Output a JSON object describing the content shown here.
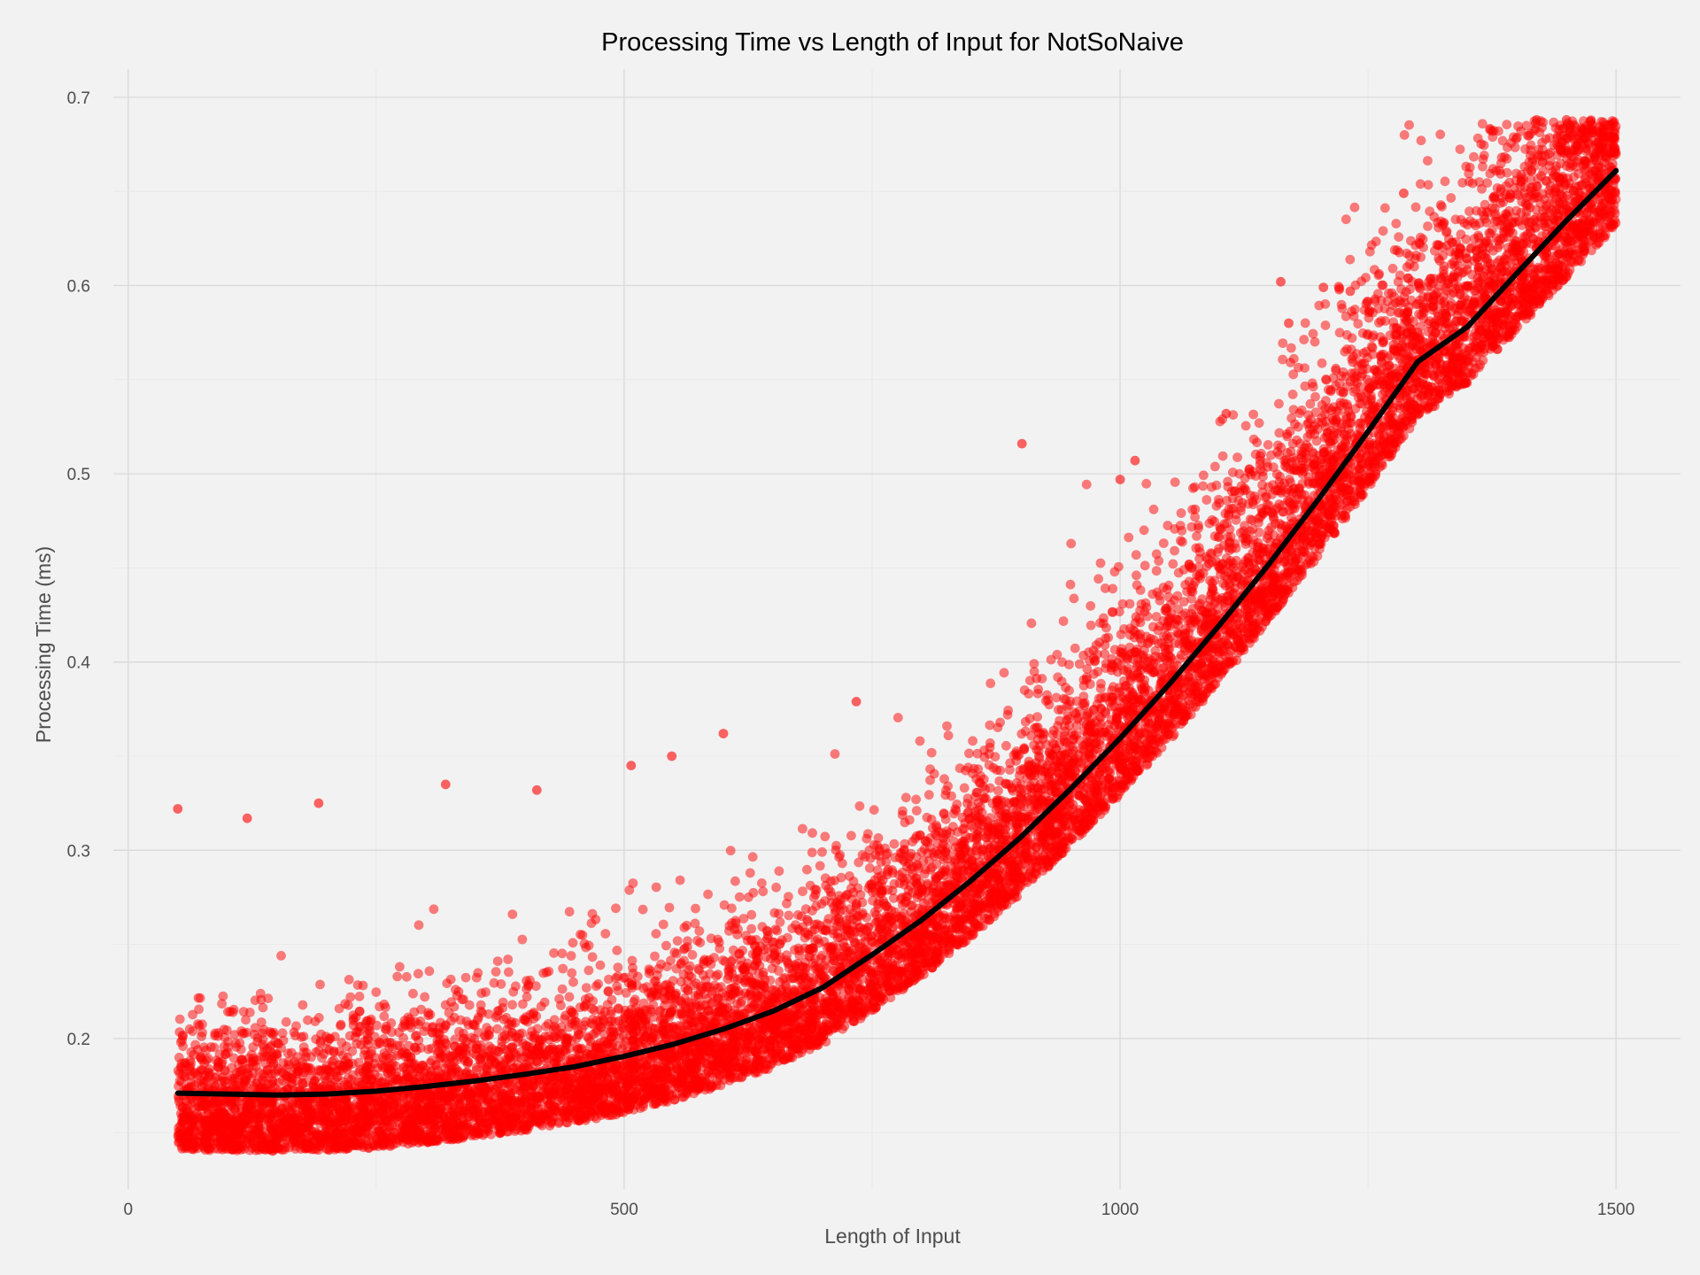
{
  "chart_data": {
    "type": "scatter",
    "title": "Processing Time vs Length of Input for NotSoNaive",
    "xlabel": "Length of Input",
    "ylabel": "Processing Time (ms)",
    "xlim": [
      -15,
      1565
    ],
    "ylim": [
      0.12,
      0.715
    ],
    "x_ticks": [
      0,
      500,
      1000,
      1500
    ],
    "y_ticks": [
      0.2,
      0.3,
      0.4,
      0.5,
      0.6,
      0.7
    ],
    "x_tick_labels": [
      "0",
      "500",
      "1000",
      "1500"
    ],
    "y_tick_labels": [
      "0.2",
      "0.3",
      "0.4",
      "0.5",
      "0.6",
      "0.7"
    ],
    "grid": true,
    "legend": "none",
    "colors": {
      "points": "#ff0000",
      "trend": "#000000",
      "background": "#f2f2f2",
      "grid": "#d9d9d9"
    },
    "series": [
      {
        "type": "scatter",
        "x_range": [
          50,
          1500
        ],
        "y_floor": 0.135,
        "y_ceiling": 0.688,
        "approx_count": 15000,
        "outliers": [
          {
            "x": 50,
            "y": 0.322
          },
          {
            "x": 120,
            "y": 0.317
          },
          {
            "x": 192,
            "y": 0.325
          },
          {
            "x": 320,
            "y": 0.335
          },
          {
            "x": 412,
            "y": 0.332
          },
          {
            "x": 507,
            "y": 0.345
          },
          {
            "x": 548,
            "y": 0.35
          },
          {
            "x": 600,
            "y": 0.362
          },
          {
            "x": 734,
            "y": 0.379
          },
          {
            "x": 901,
            "y": 0.516
          },
          {
            "x": 1000,
            "y": 0.497
          },
          {
            "x": 1015,
            "y": 0.507
          },
          {
            "x": 1107,
            "y": 0.532
          },
          {
            "x": 1162,
            "y": 0.602
          },
          {
            "x": 1205,
            "y": 0.599
          },
          {
            "x": 1232,
            "y": 0.597
          },
          {
            "x": 1286,
            "y": 0.649
          },
          {
            "x": 1170,
            "y": 0.58
          },
          {
            "x": 1420,
            "y": 0.688
          },
          {
            "x": 1450,
            "y": 0.688
          }
        ]
      },
      {
        "type": "line",
        "x": [
          50,
          100,
          150,
          200,
          250,
          300,
          350,
          400,
          450,
          500,
          550,
          600,
          650,
          700,
          750,
          800,
          850,
          900,
          950,
          1000,
          1050,
          1100,
          1150,
          1200,
          1250,
          1300,
          1350,
          1400,
          1450,
          1500
        ],
        "y": [
          0.171,
          0.1705,
          0.17,
          0.1705,
          0.172,
          0.1745,
          0.1775,
          0.181,
          0.185,
          0.1905,
          0.197,
          0.205,
          0.2145,
          0.227,
          0.2445,
          0.263,
          0.284,
          0.307,
          0.3325,
          0.3595,
          0.3885,
          0.4195,
          0.452,
          0.4865,
          0.5225,
          0.5595,
          0.578,
          0.6065,
          0.6345,
          0.661
        ]
      }
    ]
  }
}
